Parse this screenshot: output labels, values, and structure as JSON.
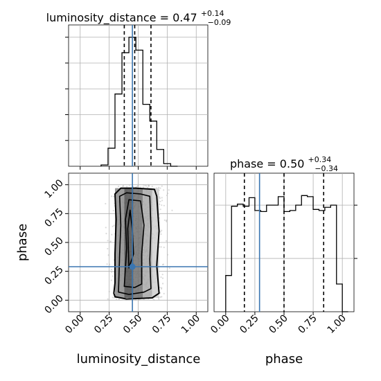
{
  "colors": {
    "truth": "#3a75b0",
    "hist": "#000000",
    "grid": "#b0b0b0",
    "scatter": "#bdbdbd"
  },
  "chart_data": [
    {
      "type": "histogram",
      "panel": "luminosity_distance-marginal",
      "title": {
        "name": "luminosity_distance",
        "value": "0.47",
        "upper": "+0.14",
        "lower": "−0.09"
      },
      "xlim": [
        -0.1,
        1.1
      ],
      "bin_edges": [
        0.18,
        0.24,
        0.3,
        0.36,
        0.42,
        0.48,
        0.54,
        0.6,
        0.66,
        0.72,
        0.78,
        0.84
      ],
      "counts": [
        0.01,
        0.14,
        0.56,
        0.88,
        1.0,
        0.9,
        0.48,
        0.35,
        0.13,
        0.02,
        0.0
      ],
      "quantiles": [
        0.38,
        0.47,
        0.61
      ],
      "truth": 0.45,
      "grid": true
    },
    {
      "type": "histogram",
      "panel": "phase-marginal",
      "title": {
        "name": "phase",
        "value": "0.50",
        "upper": "+0.34",
        "lower": "−0.34"
      },
      "xlim": [
        -0.1,
        1.1
      ],
      "ylim": [
        0,
        1.3
      ],
      "bin_edges": [
        -0.0,
        0.05,
        0.1,
        0.15,
        0.2,
        0.25,
        0.3,
        0.35,
        0.4,
        0.45,
        0.5,
        0.55,
        0.6,
        0.65,
        0.7,
        0.75,
        0.8,
        0.85,
        0.9,
        0.95,
        1.0,
        1.05
      ],
      "counts": [
        0.34,
        0.99,
        1.01,
        0.99,
        1.07,
        0.95,
        0.94,
        1.0,
        1.0,
        1.08,
        0.94,
        0.95,
        1.0,
        1.09,
        1.08,
        0.96,
        0.95,
        0.98,
        1.0,
        0.26,
        0.0
      ],
      "quantiles": [
        0.16,
        0.5,
        0.84
      ],
      "truth": 0.29,
      "xticks": [
        "0.00",
        "0.25",
        "0.50",
        "0.75",
        "1.00"
      ],
      "xlabel": "phase",
      "grid": true
    },
    {
      "type": "scatter",
      "panel": "phase-vs-luminosity_distance",
      "x_range": [
        0.18,
        0.82
      ],
      "y_range": [
        0.0,
        1.0
      ],
      "density_columns": [
        {
          "x0": 0.3,
          "x1": 0.38,
          "shade": "#8a8a8a"
        },
        {
          "x0": 0.38,
          "x1": 0.46,
          "shade": "#4a4a4a"
        },
        {
          "x0": 0.46,
          "x1": 0.54,
          "shade": "#6e6e6e"
        },
        {
          "x0": 0.54,
          "x1": 0.62,
          "shade": "#a8a8a8"
        },
        {
          "x0": 0.62,
          "x1": 0.68,
          "shade": "#cfcfcf"
        }
      ],
      "contours": [
        [
          [
            0.29,
            0.06
          ],
          [
            0.3,
            0.03
          ],
          [
            0.4,
            0.01
          ],
          [
            0.62,
            0.02
          ],
          [
            0.68,
            0.06
          ],
          [
            0.66,
            0.3
          ],
          [
            0.68,
            0.6
          ],
          [
            0.66,
            0.9
          ],
          [
            0.64,
            0.96
          ],
          [
            0.48,
            0.97
          ],
          [
            0.35,
            0.97
          ],
          [
            0.3,
            0.92
          ],
          [
            0.31,
            0.7
          ],
          [
            0.3,
            0.4
          ],
          [
            0.3,
            0.15
          ],
          [
            0.29,
            0.06
          ]
        ],
        [
          [
            0.33,
            0.07
          ],
          [
            0.42,
            0.05
          ],
          [
            0.55,
            0.07
          ],
          [
            0.61,
            0.1
          ],
          [
            0.6,
            0.35
          ],
          [
            0.61,
            0.62
          ],
          [
            0.6,
            0.9
          ],
          [
            0.52,
            0.92
          ],
          [
            0.4,
            0.93
          ],
          [
            0.34,
            0.9
          ],
          [
            0.35,
            0.65
          ],
          [
            0.34,
            0.4
          ],
          [
            0.33,
            0.07
          ]
        ],
        [
          [
            0.38,
            0.12
          ],
          [
            0.47,
            0.11
          ],
          [
            0.53,
            0.14
          ],
          [
            0.53,
            0.4
          ],
          [
            0.55,
            0.65
          ],
          [
            0.52,
            0.86
          ],
          [
            0.42,
            0.87
          ],
          [
            0.39,
            0.7
          ],
          [
            0.4,
            0.45
          ],
          [
            0.38,
            0.12
          ]
        ],
        [
          [
            0.42,
            0.28
          ],
          [
            0.46,
            0.4
          ],
          [
            0.45,
            0.6
          ],
          [
            0.43,
            0.78
          ],
          [
            0.41,
            0.62
          ],
          [
            0.42,
            0.28
          ]
        ]
      ],
      "truth": {
        "x": 0.45,
        "y": 0.29
      },
      "xlim": [
        -0.1,
        1.1
      ],
      "ylim": [
        -0.1,
        1.1
      ],
      "xticks": [
        "0.00",
        "0.25",
        "0.50",
        "0.75",
        "1.00"
      ],
      "yticks": [
        "0.00",
        "0.25",
        "0.50",
        "0.75",
        "1.00"
      ],
      "xlabel": "luminosity_distance",
      "ylabel": "phase",
      "grid": true
    }
  ]
}
